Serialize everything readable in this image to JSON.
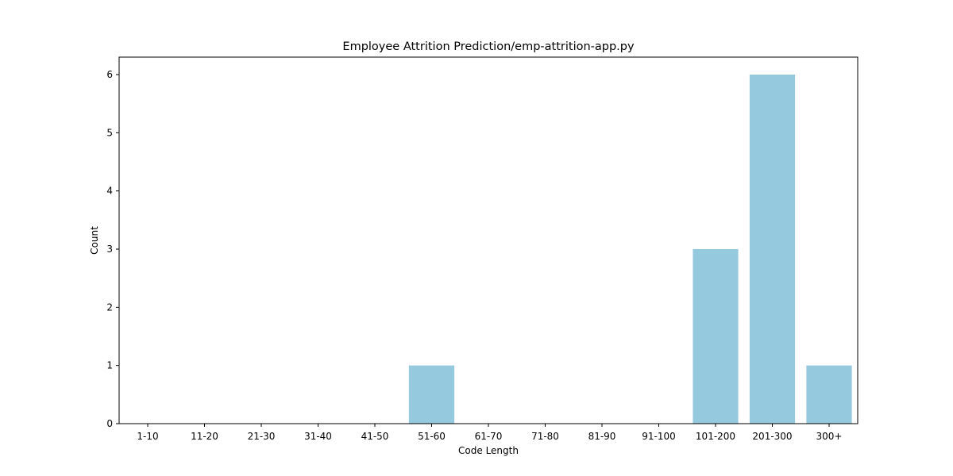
{
  "chart_data": {
    "type": "bar",
    "title": "Employee Attrition Prediction/emp-attrition-app.py",
    "xlabel": "Code Length",
    "ylabel": "Count",
    "categories": [
      "1-10",
      "11-20",
      "21-30",
      "31-40",
      "41-50",
      "51-60",
      "61-70",
      "71-80",
      "81-90",
      "91-100",
      "101-200",
      "201-300",
      "300+"
    ],
    "values": [
      0,
      0,
      0,
      0,
      0,
      1,
      0,
      0,
      0,
      0,
      3,
      6,
      1
    ],
    "ylim": [
      0,
      6.3
    ],
    "yticks": [
      0,
      1,
      2,
      3,
      4,
      5,
      6
    ],
    "bar_color": "#95c9de",
    "grid": false,
    "legend": "none"
  }
}
